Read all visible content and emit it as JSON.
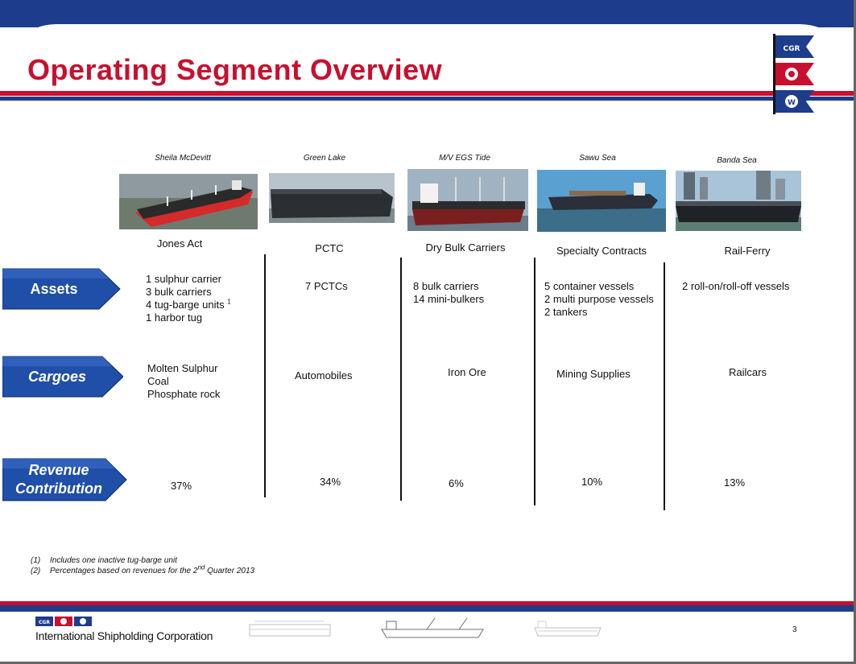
{
  "title": "Operating Segment Overview",
  "logo": {
    "flag_top": "CGR",
    "flag_bottom": "W"
  },
  "segments": [
    {
      "ship": "Sheila McDevitt",
      "segment": "Jones Act",
      "assets": [
        "1 sulphur carrier",
        "3 bulk carriers",
        "4 tug-barge units",
        "1 harbor tug"
      ],
      "assets_footnote": "1",
      "cargoes": [
        "Molten Sulphur",
        "Coal",
        "Phosphate rock"
      ],
      "revenue": "37%"
    },
    {
      "ship": "Green Lake",
      "segment": "PCTC",
      "assets": [
        "7 PCTCs"
      ],
      "cargoes": [
        "Automobiles"
      ],
      "revenue": "34%"
    },
    {
      "ship": "M/V EGS Tide",
      "segment": "Dry  Bulk Carriers",
      "assets": [
        "8 bulk carriers",
        "14 mini-bulkers"
      ],
      "cargoes": [
        "Iron Ore"
      ],
      "revenue": "6%"
    },
    {
      "ship": "Sawu Sea",
      "segment": "Specialty Contracts",
      "assets": [
        "5 container vessels",
        "2 multi purpose vessels",
        "2 tankers"
      ],
      "cargoes": [
        "Mining Supplies"
      ],
      "revenue": "10%"
    },
    {
      "ship": "Banda Sea",
      "segment": "Rail-Ferry",
      "assets": [
        "2  roll-on/roll-off vessels"
      ],
      "cargoes": [
        "Railcars"
      ],
      "revenue": "13%"
    }
  ],
  "rows": {
    "assets": "Assets",
    "cargoes": "Cargoes",
    "revenue_line1": "Revenue",
    "revenue_line2": "Contribution"
  },
  "footnotes": [
    {
      "num": "(1)",
      "text": "Includes one inactive tug-barge unit"
    },
    {
      "num": "(2)",
      "text_before": "Percentages based on revenues for the 2",
      "sup": "nd",
      "text_after": " Quarter 2013"
    }
  ],
  "footer": {
    "company": "International Shipholding Corporation",
    "page": "3",
    "mini_logo": "CGR"
  },
  "colors": {
    "red": "#c8102e",
    "blue": "#1d3c8c",
    "tab_blue": "#1f4fa8"
  }
}
